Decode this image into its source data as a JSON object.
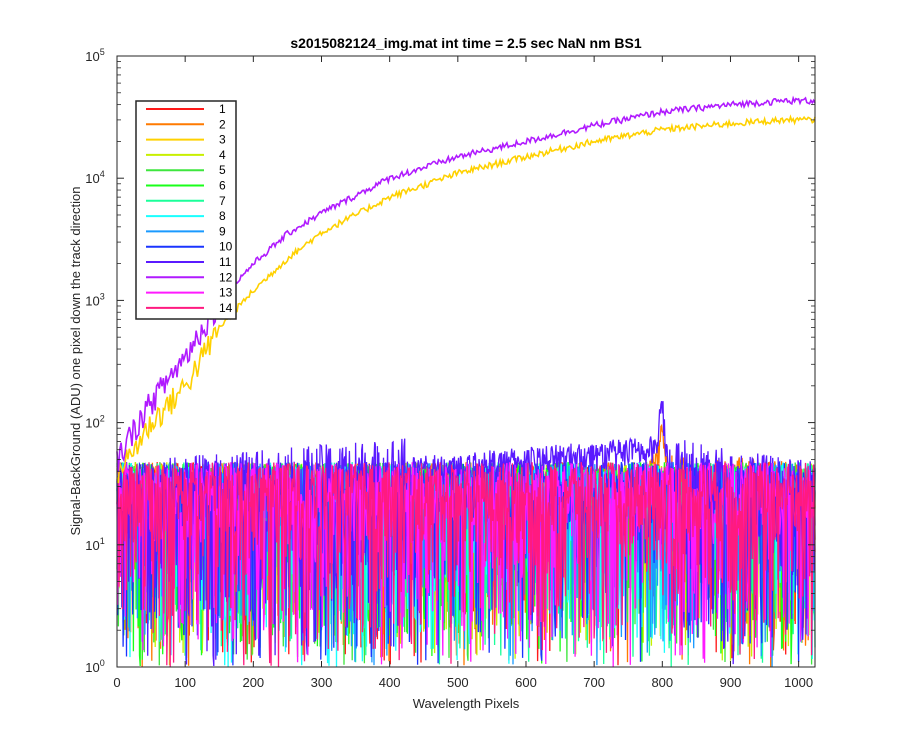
{
  "chart_data": {
    "type": "line",
    "title": "s2015082124_img.mat int time = 2.5 sec  NaN nm BS1",
    "xlabel": "Wavelength Pixels",
    "ylabel": "Signal-BackGround (ADU) one pixel down the track direction",
    "xlim": [
      0,
      1024
    ],
    "ylim": [
      1,
      100000
    ],
    "yscale": "log",
    "grid": false,
    "legend_placement": "upper-left",
    "x_ticks": [
      0,
      100,
      200,
      300,
      400,
      500,
      600,
      700,
      800,
      900,
      1000
    ],
    "x_tick_labels": [
      "0",
      "100",
      "200",
      "300",
      "400",
      "500",
      "600",
      "700",
      "800",
      "900",
      "1000"
    ],
    "y_ticks": [
      1,
      10,
      100,
      1000,
      10000,
      100000
    ],
    "y_tick_labels": [
      {
        "base": "10",
        "exp": "0"
      },
      {
        "base": "10",
        "exp": "1"
      },
      {
        "base": "10",
        "exp": "2"
      },
      {
        "base": "10",
        "exp": "3"
      },
      {
        "base": "10",
        "exp": "4"
      },
      {
        "base": "10",
        "exp": "5"
      }
    ],
    "series": [
      {
        "name": "1",
        "color": "#ff1a1a",
        "kind": "noise",
        "x": [
          0,
          1024
        ],
        "y": [
          25,
          25
        ]
      },
      {
        "name": "2",
        "color": "#ff7a00",
        "kind": "noise",
        "x": [
          0,
          780,
          790,
          800,
          810,
          1024
        ],
        "y": [
          25,
          25,
          50,
          80,
          30,
          25
        ]
      },
      {
        "name": "3",
        "color": "#ffd100",
        "kind": "smooth",
        "x": [
          0,
          20,
          50,
          100,
          150,
          200,
          250,
          300,
          400,
          500,
          600,
          700,
          800,
          900,
          980,
          1024
        ],
        "y": [
          40,
          55,
          100,
          200,
          600,
          1200,
          2200,
          3600,
          7000,
          11000,
          15000,
          20000,
          25000,
          28000,
          30000,
          30000
        ]
      },
      {
        "name": "4",
        "color": "#c8ef00",
        "kind": "noise",
        "x": [
          0,
          1024
        ],
        "y": [
          25,
          25
        ]
      },
      {
        "name": "5",
        "color": "#3ee63e",
        "kind": "noise",
        "x": [
          0,
          1024
        ],
        "y": [
          25,
          25
        ]
      },
      {
        "name": "6",
        "color": "#1aff1a",
        "kind": "noise",
        "x": [
          0,
          1024
        ],
        "y": [
          25,
          25
        ]
      },
      {
        "name": "7",
        "color": "#1aff9a",
        "kind": "noise",
        "x": [
          0,
          1024
        ],
        "y": [
          25,
          25
        ]
      },
      {
        "name": "8",
        "color": "#1affff",
        "kind": "noise",
        "x": [
          0,
          1024
        ],
        "y": [
          25,
          25
        ]
      },
      {
        "name": "9",
        "color": "#1a9aff",
        "kind": "noise",
        "x": [
          0,
          1024
        ],
        "y": [
          25,
          25
        ]
      },
      {
        "name": "10",
        "color": "#1a35ff",
        "kind": "noise",
        "x": [
          0,
          1024
        ],
        "y": [
          25,
          25
        ]
      },
      {
        "name": "11",
        "color": "#5a1aff",
        "kind": "noise",
        "x": [
          0,
          790,
          800,
          810,
          1024
        ],
        "y": [
          25,
          60,
          140,
          40,
          25
        ]
      },
      {
        "name": "12",
        "color": "#b01aff",
        "kind": "smooth",
        "x": [
          0,
          20,
          50,
          100,
          150,
          200,
          250,
          300,
          400,
          500,
          600,
          700,
          800,
          900,
          980,
          1024
        ],
        "y": [
          50,
          80,
          150,
          350,
          1000,
          2000,
          3500,
          5200,
          10000,
          15000,
          20000,
          27000,
          35000,
          40000,
          43000,
          43000
        ]
      },
      {
        "name": "13",
        "color": "#ff1aff",
        "kind": "noise",
        "x": [
          0,
          1024
        ],
        "y": [
          25,
          25
        ]
      },
      {
        "name": "14",
        "color": "#ff1a80",
        "kind": "noise",
        "x": [
          0,
          1024
        ],
        "y": [
          25,
          25
        ]
      }
    ]
  }
}
